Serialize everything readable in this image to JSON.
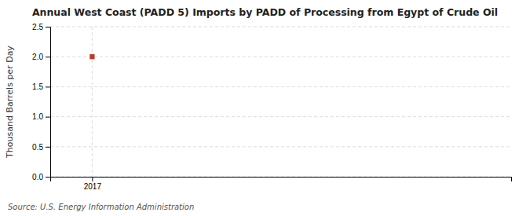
{
  "chart_data": {
    "type": "scatter",
    "title": "Annual West Coast (PADD 5) Imports by PADD of Processing from Egypt of Crude Oil",
    "ylabel": "Thousand Barrels per Day",
    "source": "Source: U.S. Energy Information Administration",
    "x": [
      2017
    ],
    "values": [
      2.0
    ],
    "color": "#c0392b",
    "marker": "square",
    "xlim": [
      2016.4,
      2023.0
    ],
    "ylim": [
      0.0,
      2.5
    ],
    "xticks": [
      2017
    ],
    "yticks": [
      {
        "value": 0.0,
        "label": "0.0"
      },
      0.5,
      {
        "value": 1.0,
        "label": "1.0"
      },
      1.5,
      {
        "value": 2.0,
        "label": "2.0"
      },
      2.5
    ],
    "grid": true
  }
}
